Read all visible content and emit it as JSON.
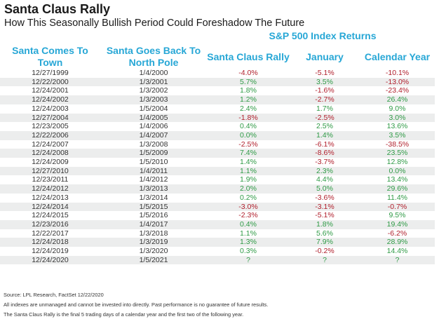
{
  "chart_data": {
    "type": "table",
    "title": "Santa Claus Rally",
    "subtitle": "How This Seasonally Bullish Period Could Foreshadow The Future",
    "group_header": "S&P 500 Index Returns",
    "columns": [
      "Santa Comes To Town",
      "Santa Goes Back To North Pole",
      "Santa Claus Rally",
      "January",
      "Calendar Year"
    ],
    "rows": [
      [
        "12/27/1999",
        "1/4/2000",
        "-4.0%",
        "-5.1%",
        "-10.1%"
      ],
      [
        "12/22/2000",
        "1/3/2001",
        "5.7%",
        "3.5%",
        "-13.0%"
      ],
      [
        "12/24/2001",
        "1/3/2002",
        "1.8%",
        "-1.6%",
        "-23.4%"
      ],
      [
        "12/24/2002",
        "1/3/2003",
        "1.2%",
        "-2.7%",
        "26.4%"
      ],
      [
        "12/24/2003",
        "1/5/2004",
        "2.4%",
        "1.7%",
        "9.0%"
      ],
      [
        "12/27/2004",
        "1/4/2005",
        "-1.8%",
        "-2.5%",
        "3.0%"
      ],
      [
        "12/23/2005",
        "1/4/2006",
        "0.4%",
        "2.5%",
        "13.6%"
      ],
      [
        "12/22/2006",
        "1/4/2007",
        "0.0%",
        "1.4%",
        "3.5%"
      ],
      [
        "12/24/2007",
        "1/3/2008",
        "-2.5%",
        "-6.1%",
        "-38.5%"
      ],
      [
        "12/24/2008",
        "1/5/2009",
        "7.4%",
        "-8.6%",
        "23.5%"
      ],
      [
        "12/24/2009",
        "1/5/2010",
        "1.4%",
        "-3.7%",
        "12.8%"
      ],
      [
        "12/27/2010",
        "1/4/2011",
        "1.1%",
        "2.3%",
        "0.0%"
      ],
      [
        "12/23/2011",
        "1/4/2012",
        "1.9%",
        "4.4%",
        "13.4%"
      ],
      [
        "12/24/2012",
        "1/3/2013",
        "2.0%",
        "5.0%",
        "29.6%"
      ],
      [
        "12/24/2013",
        "1/3/2014",
        "0.2%",
        "-3.6%",
        "11.4%"
      ],
      [
        "12/24/2014",
        "1/5/2015",
        "-3.0%",
        "-3.1%",
        "-0.7%"
      ],
      [
        "12/24/2015",
        "1/5/2016",
        "-2.3%",
        "-5.1%",
        "9.5%"
      ],
      [
        "12/23/2016",
        "1/4/2017",
        "0.4%",
        "1.8%",
        "19.4%"
      ],
      [
        "12/22/2017",
        "1/3/2018",
        "1.1%",
        "5.6%",
        "-6.2%"
      ],
      [
        "12/24/2018",
        "1/3/2019",
        "1.3%",
        "7.9%",
        "28.9%"
      ],
      [
        "12/24/2019",
        "1/3/2020",
        "0.3%",
        "-0.2%",
        "14.4%"
      ],
      [
        "12/24/2020",
        "1/5/2021",
        "?",
        "?",
        "?"
      ]
    ],
    "footnotes": [
      "Source: LPL Research, FactSet 12/22/2020",
      "All indexes are unmanaged and cannot be invested into directly. Past performance is no guarantee of future results.",
      "The Santa Claus Rally is the final 5 trading days of a calendar year and the first two of the following year."
    ]
  },
  "colors": {
    "header": "#27a7d6",
    "negative": "#b01e2b",
    "positive": "#2f9a46",
    "stripe": "#eceded"
  }
}
